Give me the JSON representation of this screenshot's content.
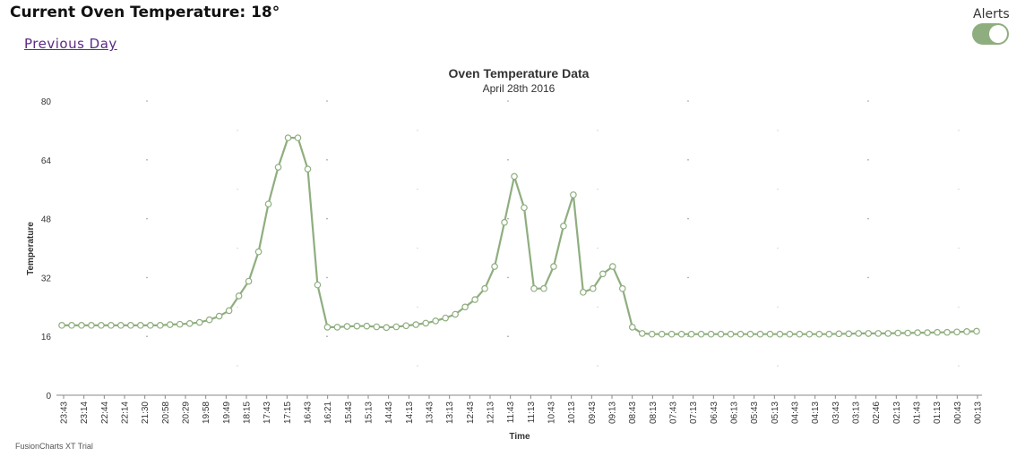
{
  "header": {
    "title": "Current Oven Temperature: 18°",
    "previous_day_label": "Previous Day",
    "alerts_label": "Alerts",
    "alerts_enabled": true
  },
  "colors": {
    "series": "#8fae7f",
    "toggle_on": "#8fae7f",
    "link": "#5b2a86"
  },
  "footer": {
    "watermark": "FusionCharts XT Trial"
  },
  "chart_data": {
    "type": "line",
    "title": "Oven Temperature Data",
    "subtitle": "April 28th 2016",
    "xlabel": "Time",
    "ylabel": "Temperature",
    "ylim": [
      0,
      80
    ],
    "yticks": [
      0,
      16,
      32,
      48,
      64,
      80
    ],
    "grid": "dotted",
    "x_labels": [
      "23:43",
      "23:14",
      "22:44",
      "22:14",
      "21:30",
      "20:58",
      "20:29",
      "19:58",
      "19:49",
      "18:15",
      "17:43",
      "17:15",
      "16:43",
      "16:21",
      "15:43",
      "15:13",
      "14:43",
      "14:13",
      "13:43",
      "13:13",
      "12:43",
      "12:13",
      "11:43",
      "11:13",
      "10:43",
      "10:13",
      "09:43",
      "09:13",
      "08:43",
      "08:13",
      "07:43",
      "07:13",
      "06:43",
      "06:13",
      "05:43",
      "05:13",
      "04:43",
      "04:13",
      "03:43",
      "03:13",
      "02:46",
      "02:13",
      "01:43",
      "01:13",
      "00:43",
      "00:13"
    ],
    "values": [
      19,
      19,
      19,
      19,
      19,
      19,
      19,
      19,
      19,
      19,
      19,
      19.2,
      19.3,
      19.5,
      19.8,
      20.5,
      21.5,
      23,
      27,
      31,
      39,
      52,
      62,
      70,
      70,
      61.5,
      30,
      18.5,
      18.5,
      18.7,
      18.8,
      18.8,
      18.6,
      18.4,
      18.6,
      18.9,
      19.2,
      19.6,
      20.2,
      21,
      22,
      24,
      26,
      29,
      35,
      47,
      59.5,
      51,
      29,
      29,
      35,
      46,
      54.5,
      28,
      29,
      33,
      35,
      29,
      18.5,
      16.8,
      16.6,
      16.6,
      16.6,
      16.6,
      16.6,
      16.6,
      16.6,
      16.6,
      16.6,
      16.6,
      16.6,
      16.6,
      16.6,
      16.6,
      16.6,
      16.6,
      16.6,
      16.6,
      16.6,
      16.7,
      16.7,
      16.8,
      16.8,
      16.8,
      16.8,
      16.9,
      16.9,
      17,
      17,
      17.1,
      17.1,
      17.2,
      17.3,
      17.4
    ]
  }
}
